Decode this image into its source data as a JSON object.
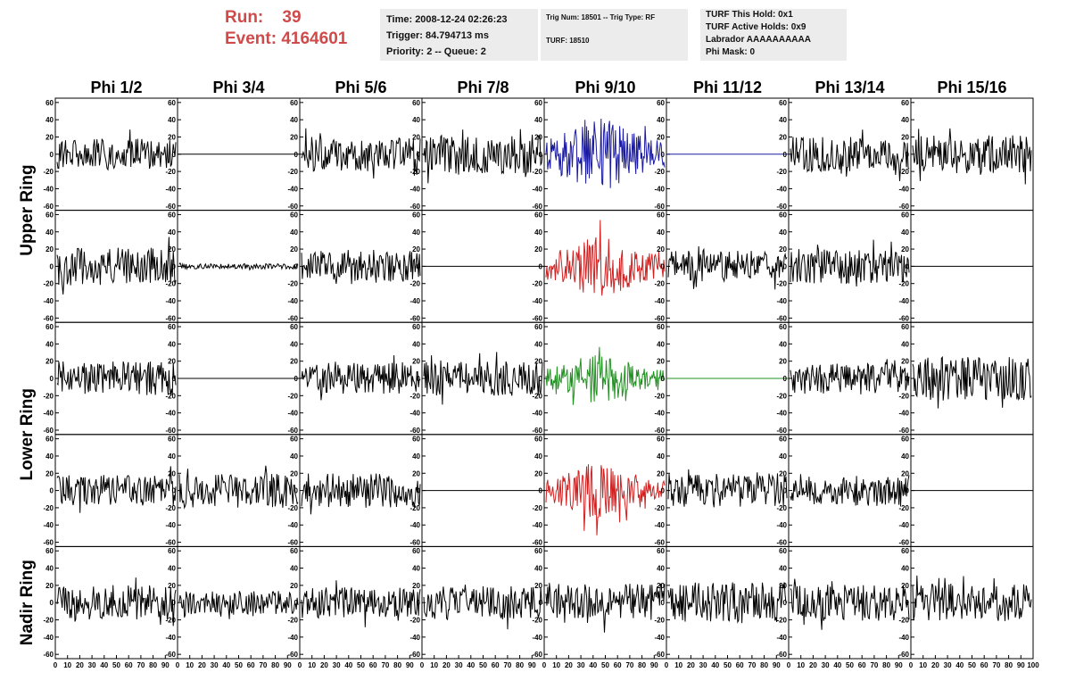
{
  "header": {
    "run_label": "Run:",
    "run_value": "39",
    "event_label": "Event:",
    "event_value": "4164601"
  },
  "info_a": {
    "time": "Time: 2008-12-24 02:26:23",
    "trigger": "Trigger: 84.794713 ms",
    "priority": "Priority: 2 -- Queue: 2"
  },
  "info_b": {
    "trig": "Trig Num: 18501 -- Trig Type: RF",
    "turf": "TURF: 18510"
  },
  "info_c": {
    "hold": "TURF This Hold: 0x1",
    "active": "TURF Active Holds: 0x9",
    "labrador": "Labrador AAAAAAAAAA",
    "phimask": "Phi Mask: 0"
  },
  "columns": [
    "Phi 1/2",
    "Phi 3/4",
    "Phi 5/6",
    "Phi 7/8",
    "Phi 9/10",
    "Phi 11/12",
    "Phi 13/14",
    "Phi 15/16"
  ],
  "rings": [
    {
      "label": "Upper Ring",
      "rows": [
        0,
        1
      ]
    },
    {
      "label": "Lower Ring",
      "rows": [
        2,
        3
      ]
    },
    {
      "label": "Nadir Ring",
      "rows": [
        4
      ]
    }
  ],
  "y_ticks": [
    "60",
    "40",
    "20",
    "0",
    "-20",
    "-40",
    "-60"
  ],
  "y_tick_values": [
    60,
    40,
    20,
    0,
    -20,
    -40,
    -60
  ],
  "x_ticks": [
    "0",
    "10",
    "20",
    "30",
    "40",
    "50",
    "60",
    "70",
    "80",
    "90",
    "100"
  ],
  "x_tick_values": [
    0,
    10,
    20,
    30,
    40,
    50,
    60,
    70,
    80,
    90,
    100
  ],
  "colors": {
    "black": "#000000",
    "blue": "#1a1aa0",
    "red": "#d02020",
    "green": "#209020",
    "title_red": "#d04a4a",
    "info_bg": "#ececec"
  },
  "chart_data": {
    "type": "line",
    "xlim": [
      0,
      100
    ],
    "ylim": [
      -65,
      65
    ],
    "panels": [
      {
        "row": 0,
        "col": 0,
        "amp": 18,
        "color": "black"
      },
      {
        "row": 0,
        "col": 1,
        "amp": 0,
        "color": "black"
      },
      {
        "row": 0,
        "col": 2,
        "amp": 20,
        "color": "black"
      },
      {
        "row": 0,
        "col": 3,
        "amp": 22,
        "color": "black"
      },
      {
        "row": 0,
        "col": 4,
        "amp": 40,
        "color": "blue",
        "packet": true
      },
      {
        "row": 0,
        "col": 5,
        "amp": 0,
        "color": "blue"
      },
      {
        "row": 0,
        "col": 6,
        "amp": 20,
        "color": "black"
      },
      {
        "row": 0,
        "col": 7,
        "amp": 22,
        "color": "black"
      },
      {
        "row": 1,
        "col": 0,
        "amp": 22,
        "color": "black"
      },
      {
        "row": 1,
        "col": 1,
        "amp": 3,
        "color": "black"
      },
      {
        "row": 1,
        "col": 2,
        "amp": 18,
        "color": "black"
      },
      {
        "row": 1,
        "col": 3,
        "amp": 0,
        "color": "black"
      },
      {
        "row": 1,
        "col": 4,
        "amp": 33,
        "color": "red",
        "packet": true
      },
      {
        "row": 1,
        "col": 5,
        "amp": 18,
        "color": "black"
      },
      {
        "row": 1,
        "col": 6,
        "amp": 20,
        "color": "black"
      },
      {
        "row": 1,
        "col": 7,
        "amp": 0,
        "color": "black"
      },
      {
        "row": 2,
        "col": 0,
        "amp": 20,
        "color": "black"
      },
      {
        "row": 2,
        "col": 1,
        "amp": 0,
        "color": "black"
      },
      {
        "row": 2,
        "col": 2,
        "amp": 18,
        "color": "black"
      },
      {
        "row": 2,
        "col": 3,
        "amp": 20,
        "color": "black"
      },
      {
        "row": 2,
        "col": 4,
        "amp": 26,
        "color": "green",
        "packet": true
      },
      {
        "row": 2,
        "col": 5,
        "amp": 0,
        "color": "green"
      },
      {
        "row": 2,
        "col": 6,
        "amp": 18,
        "color": "black"
      },
      {
        "row": 2,
        "col": 7,
        "amp": 25,
        "color": "black"
      },
      {
        "row": 3,
        "col": 0,
        "amp": 18,
        "color": "black"
      },
      {
        "row": 3,
        "col": 1,
        "amp": 20,
        "color": "black"
      },
      {
        "row": 3,
        "col": 2,
        "amp": 20,
        "color": "black"
      },
      {
        "row": 3,
        "col": 3,
        "amp": 0,
        "color": "black"
      },
      {
        "row": 3,
        "col": 4,
        "amp": 30,
        "color": "red",
        "packet": true
      },
      {
        "row": 3,
        "col": 5,
        "amp": 20,
        "color": "black"
      },
      {
        "row": 3,
        "col": 6,
        "amp": 18,
        "color": "black"
      },
      {
        "row": 3,
        "col": 7,
        "amp": 0,
        "color": "black"
      },
      {
        "row": 4,
        "col": 0,
        "amp": 20,
        "color": "black"
      },
      {
        "row": 4,
        "col": 1,
        "amp": 14,
        "color": "black"
      },
      {
        "row": 4,
        "col": 2,
        "amp": 18,
        "color": "black"
      },
      {
        "row": 4,
        "col": 3,
        "amp": 20,
        "color": "black"
      },
      {
        "row": 4,
        "col": 4,
        "amp": 22,
        "color": "black"
      },
      {
        "row": 4,
        "col": 5,
        "amp": 24,
        "color": "black"
      },
      {
        "row": 4,
        "col": 6,
        "amp": 22,
        "color": "black"
      },
      {
        "row": 4,
        "col": 7,
        "amp": 22,
        "color": "black"
      }
    ]
  }
}
